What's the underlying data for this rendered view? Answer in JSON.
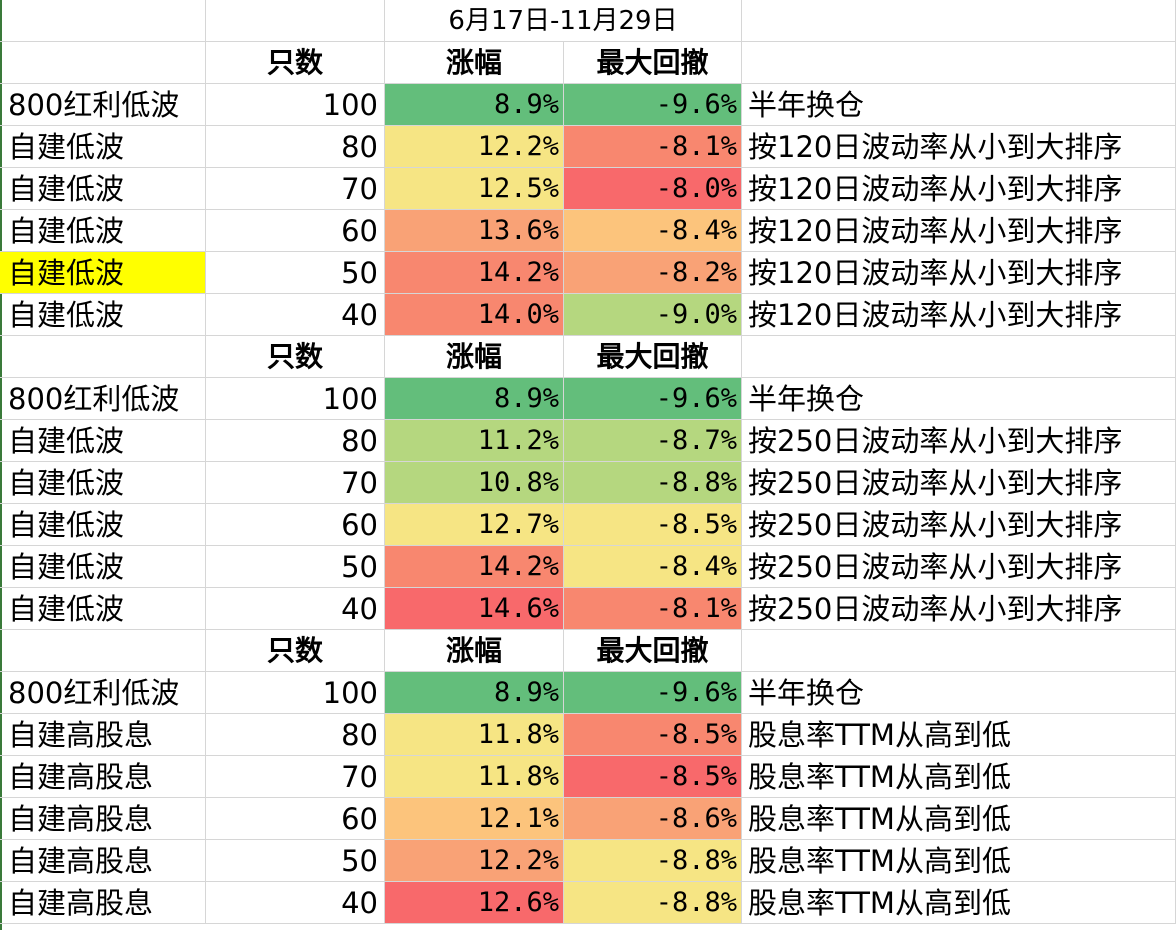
{
  "title": "6月17日-11月29日",
  "header": {
    "count": "只数",
    "gain": "涨幅",
    "drawdown": "最大回撤"
  },
  "colors": {
    "strong_green": "#63be7b",
    "light_green": "#b5d77f",
    "yellow": "#f6e584",
    "light_orange": "#fcc47c",
    "orange": "#f9a276",
    "salmon": "#f8876f",
    "red": "#f8696b",
    "highlight_yellow": "#ffff00"
  },
  "groups": [
    {
      "rows": [
        {
          "name": "800红利低波",
          "count": "100",
          "gain": "8.9%",
          "drawdown": "-9.6%",
          "note": "半年换仓",
          "gain_color": "strong_green",
          "dd_color": "strong_green"
        },
        {
          "name": "自建低波",
          "count": "80",
          "gain": "12.2%",
          "drawdown": "-8.1%",
          "note": "按120日波动率从小到大排序",
          "gain_color": "yellow",
          "dd_color": "salmon"
        },
        {
          "name": "自建低波",
          "count": "70",
          "gain": "12.5%",
          "drawdown": "-8.0%",
          "note": "按120日波动率从小到大排序",
          "gain_color": "yellow",
          "dd_color": "red"
        },
        {
          "name": "自建低波",
          "count": "60",
          "gain": "13.6%",
          "drawdown": "-8.4%",
          "note": "按120日波动率从小到大排序",
          "gain_color": "orange",
          "dd_color": "light_orange"
        },
        {
          "name": "自建低波",
          "count": "50",
          "gain": "14.2%",
          "drawdown": "-8.2%",
          "note": "按120日波动率从小到大排序",
          "gain_color": "salmon",
          "dd_color": "orange",
          "highlight": true
        },
        {
          "name": "自建低波",
          "count": "40",
          "gain": "14.0%",
          "drawdown": "-9.0%",
          "note": "按120日波动率从小到大排序",
          "gain_color": "salmon",
          "dd_color": "light_green"
        }
      ]
    },
    {
      "rows": [
        {
          "name": "800红利低波",
          "count": "100",
          "gain": "8.9%",
          "drawdown": "-9.6%",
          "note": "半年换仓",
          "gain_color": "strong_green",
          "dd_color": "strong_green"
        },
        {
          "name": "自建低波",
          "count": "80",
          "gain": "11.2%",
          "drawdown": "-8.7%",
          "note": "按250日波动率从小到大排序",
          "gain_color": "light_green",
          "dd_color": "light_green"
        },
        {
          "name": "自建低波",
          "count": "70",
          "gain": "10.8%",
          "drawdown": "-8.8%",
          "note": "按250日波动率从小到大排序",
          "gain_color": "light_green",
          "dd_color": "light_green"
        },
        {
          "name": "自建低波",
          "count": "60",
          "gain": "12.7%",
          "drawdown": "-8.5%",
          "note": "按250日波动率从小到大排序",
          "gain_color": "yellow",
          "dd_color": "yellow"
        },
        {
          "name": "自建低波",
          "count": "50",
          "gain": "14.2%",
          "drawdown": "-8.4%",
          "note": "按250日波动率从小到大排序",
          "gain_color": "salmon",
          "dd_color": "yellow"
        },
        {
          "name": "自建低波",
          "count": "40",
          "gain": "14.6%",
          "drawdown": "-8.1%",
          "note": "按250日波动率从小到大排序",
          "gain_color": "red",
          "dd_color": "salmon"
        }
      ]
    },
    {
      "rows": [
        {
          "name": "800红利低波",
          "count": "100",
          "gain": "8.9%",
          "drawdown": "-9.6%",
          "note": "半年换仓",
          "gain_color": "strong_green",
          "dd_color": "strong_green"
        },
        {
          "name": "自建高股息",
          "count": "80",
          "gain": "11.8%",
          "drawdown": "-8.5%",
          "note": "股息率TTM从高到低",
          "gain_color": "yellow",
          "dd_color": "salmon"
        },
        {
          "name": "自建高股息",
          "count": "70",
          "gain": "11.8%",
          "drawdown": "-8.5%",
          "note": "股息率TTM从高到低",
          "gain_color": "yellow",
          "dd_color": "red"
        },
        {
          "name": "自建高股息",
          "count": "60",
          "gain": "12.1%",
          "drawdown": "-8.6%",
          "note": "股息率TTM从高到低",
          "gain_color": "light_orange",
          "dd_color": "orange"
        },
        {
          "name": "自建高股息",
          "count": "50",
          "gain": "12.2%",
          "drawdown": "-8.8%",
          "note": "股息率TTM从高到低",
          "gain_color": "orange",
          "dd_color": "yellow"
        },
        {
          "name": "自建高股息",
          "count": "40",
          "gain": "12.6%",
          "drawdown": "-8.8%",
          "note": "股息率TTM从高到低",
          "gain_color": "red",
          "dd_color": "yellow"
        }
      ]
    }
  ]
}
